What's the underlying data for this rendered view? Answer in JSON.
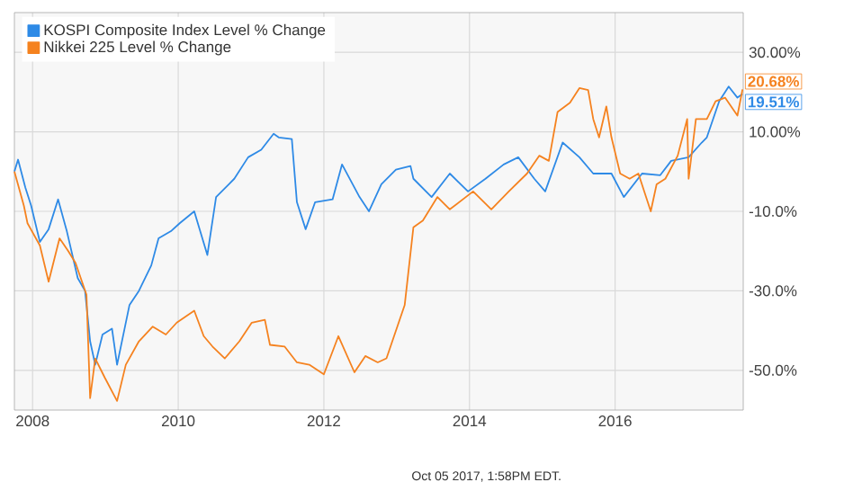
{
  "chart_data": {
    "type": "line",
    "xlim": [
      2007.75,
      2017.76
    ],
    "ylim": [
      -60,
      40
    ],
    "xticks": [
      2008,
      2010,
      2012,
      2014,
      2016
    ],
    "yticks": [
      {
        "value": -50,
        "label": "-50.0%"
      },
      {
        "value": -30,
        "label": "-30.0%"
      },
      {
        "value": -10,
        "label": "-10.0%"
      },
      {
        "value": 10,
        "label": "10.00%"
      },
      {
        "value": 30,
        "label": "30.00%"
      }
    ],
    "grid": true,
    "legend": "top left",
    "series": [
      {
        "name": "KOSPI Composite Index Level % Change",
        "color": "#2e8ae6",
        "x": [
          2007.75,
          2007.8,
          2007.9,
          2007.98,
          2008.1,
          2008.22,
          2008.35,
          2008.47,
          2008.62,
          2008.72,
          2008.79,
          2008.86,
          2008.96,
          2009.09,
          2009.16,
          2009.33,
          2009.46,
          2009.63,
          2009.73,
          2009.9,
          2010.02,
          2010.22,
          2010.4,
          2010.52,
          2010.77,
          2010.96,
          2011.14,
          2011.31,
          2011.38,
          2011.56,
          2011.63,
          2011.75,
          2011.88,
          2012.12,
          2012.25,
          2012.49,
          2012.62,
          2012.79,
          2012.99,
          2013.19,
          2013.23,
          2013.48,
          2013.73,
          2013.98,
          2014.22,
          2014.47,
          2014.67,
          2014.89,
          2015.04,
          2015.28,
          2015.51,
          2015.7,
          2015.95,
          2016.12,
          2016.37,
          2016.62,
          2016.77,
          2017.01,
          2017.19,
          2017.26,
          2017.43,
          2017.56,
          2017.68,
          2017.75
        ],
        "values": [
          0,
          3,
          -4,
          -8.6,
          -17.7,
          -14.5,
          -7,
          -15,
          -26.8,
          -30,
          -42.7,
          -48.6,
          -41,
          -39.5,
          -48.6,
          -33.6,
          -30,
          -23.6,
          -16.8,
          -15,
          -13,
          -10,
          -21,
          -6.4,
          -1.8,
          3.6,
          5.5,
          9.5,
          8.6,
          8.2,
          -7.7,
          -14.5,
          -7.7,
          -7,
          1.8,
          -6.4,
          -10,
          -3.2,
          0.5,
          1.4,
          -1.8,
          -6.4,
          -0.5,
          -5,
          -1.8,
          1.8,
          3.6,
          -1.8,
          -5,
          7.3,
          3.6,
          -0.5,
          -0.5,
          -6.4,
          -0.5,
          -0.9,
          2.7,
          3.6,
          7.3,
          8.6,
          17.7,
          21.4,
          18.6,
          19.51
        ]
      },
      {
        "name": "Nikkei 225 Level % Change",
        "color": "#f5821f",
        "x": [
          2007.75,
          2007.88,
          2007.93,
          2008.1,
          2008.22,
          2008.37,
          2008.49,
          2008.59,
          2008.74,
          2008.79,
          2008.86,
          2008.99,
          2009.16,
          2009.28,
          2009.46,
          2009.65,
          2009.83,
          2009.98,
          2010.22,
          2010.35,
          2010.47,
          2010.64,
          2010.84,
          2011.01,
          2011.19,
          2011.26,
          2011.46,
          2011.63,
          2011.8,
          2012.0,
          2012.2,
          2012.42,
          2012.57,
          2012.74,
          2012.86,
          2013.11,
          2013.23,
          2013.36,
          2013.56,
          2013.73,
          2014.05,
          2014.3,
          2014.54,
          2014.79,
          2014.96,
          2015.09,
          2015.21,
          2015.38,
          2015.51,
          2015.63,
          2015.7,
          2015.78,
          2015.88,
          2015.95,
          2016.07,
          2016.2,
          2016.32,
          2016.49,
          2016.57,
          2016.69,
          2016.86,
          2016.99,
          2017.01,
          2017.11,
          2017.26,
          2017.38,
          2017.51,
          2017.68,
          2017.75
        ],
        "values": [
          0,
          -8.6,
          -13,
          -18.6,
          -27.7,
          -16.8,
          -20,
          -23,
          -31,
          -57,
          -47,
          -51.8,
          -57.7,
          -48.6,
          -42.7,
          -39,
          -41,
          -38,
          -35,
          -41.4,
          -44,
          -47,
          -42.7,
          -38,
          -37.3,
          -43.6,
          -44,
          -48,
          -48.6,
          -51,
          -41.4,
          -50.5,
          -46.4,
          -48,
          -47,
          -33.6,
          -14,
          -12.3,
          -6.4,
          -9.5,
          -5,
          -9.5,
          -5,
          -0.5,
          4,
          2.7,
          15,
          17.3,
          21,
          20.5,
          13.2,
          8.6,
          16.4,
          8.6,
          -0.5,
          -1.8,
          -0.5,
          -10,
          -3.2,
          -1.8,
          4,
          13.2,
          -1.8,
          13.2,
          13.2,
          17.7,
          18.6,
          14.1,
          20.68
        ]
      }
    ],
    "annotations": [
      {
        "text": "20.68%",
        "x": 2017.76,
        "y": 20.68
      },
      {
        "text": "19.51%",
        "x": 2017.76,
        "y": 19.51
      },
      "Oct 05 2017, 1:58PM EDT."
    ]
  }
}
